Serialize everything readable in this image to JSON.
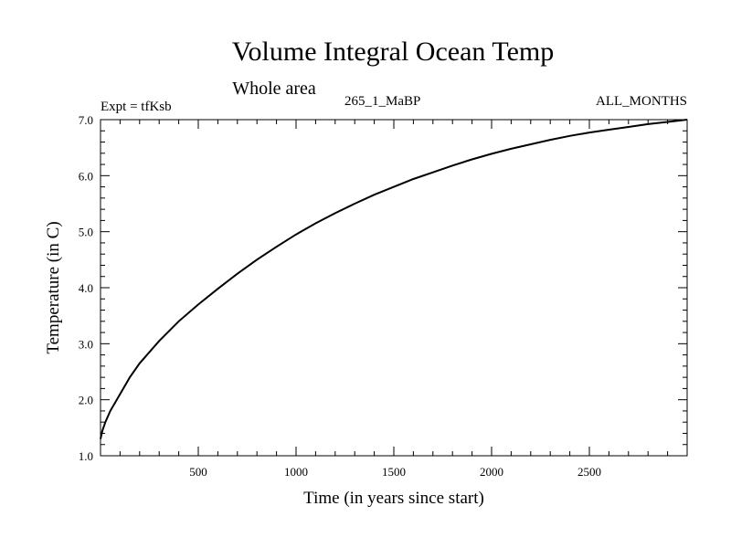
{
  "chart_data": {
    "type": "line",
    "title": "Volume Integral Ocean Temp",
    "subtitle": "Whole area",
    "experiment_label": "Expt = tfKsb",
    "period_label": "265_1_MaBP",
    "months_label": "ALL_MONTHS",
    "xlabel": "Time (in years since start)",
    "ylabel": "Temperature (in C)",
    "xlim": [
      0,
      3000
    ],
    "ylim": [
      1.0,
      7.0
    ],
    "x_ticks": [
      500,
      1000,
      1500,
      2000,
      2500
    ],
    "x_tick_labels": [
      "500",
      "1000",
      "1500",
      "2000",
      "2500"
    ],
    "y_ticks": [
      1.0,
      2.0,
      3.0,
      4.0,
      5.0,
      6.0,
      7.0
    ],
    "y_tick_labels": [
      "1.0",
      "2.0",
      "3.0",
      "4.0",
      "5.0",
      "6.0",
      "7.0"
    ],
    "series": [
      {
        "name": "Volume Integral Ocean Temp",
        "x": [
          0,
          10,
          25,
          50,
          100,
          150,
          200,
          300,
          400,
          500,
          600,
          700,
          800,
          900,
          1000,
          1100,
          1200,
          1300,
          1400,
          1500,
          1600,
          1700,
          1800,
          1900,
          2000,
          2100,
          2200,
          2300,
          2400,
          2500,
          2600,
          2700,
          2800,
          2900,
          3000
        ],
        "y": [
          1.3,
          1.45,
          1.6,
          1.8,
          2.1,
          2.4,
          2.65,
          3.05,
          3.4,
          3.7,
          3.98,
          4.25,
          4.5,
          4.73,
          4.95,
          5.15,
          5.33,
          5.5,
          5.66,
          5.8,
          5.94,
          6.06,
          6.18,
          6.29,
          6.39,
          6.48,
          6.56,
          6.64,
          6.71,
          6.77,
          6.82,
          6.87,
          6.92,
          6.96,
          7.0
        ]
      }
    ]
  }
}
